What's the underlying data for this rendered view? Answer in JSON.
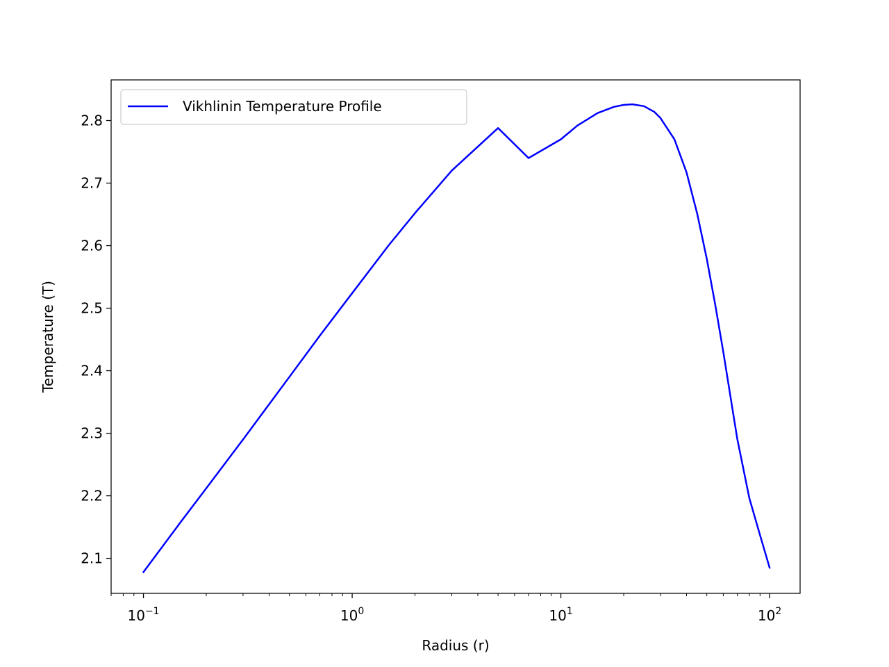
{
  "chart_data": {
    "type": "line",
    "xscale": "log",
    "xlim": [
      0.07,
      140
    ],
    "ylim": [
      2.044,
      2.865
    ],
    "xlabel": "Radius (r)",
    "ylabel": "Temperature (T)",
    "x_major_ticks": [
      0.1,
      1,
      10,
      100
    ],
    "x_tick_labels": [
      {
        "base": "10",
        "exp": "−1"
      },
      {
        "base": "10",
        "exp": "0"
      },
      {
        "base": "10",
        "exp": "1"
      },
      {
        "base": "10",
        "exp": "2"
      }
    ],
    "y_ticks": [
      2.1,
      2.2,
      2.3,
      2.4,
      2.5,
      2.6,
      2.7,
      2.8
    ],
    "y_tick_labels": [
      "2.1",
      "2.2",
      "2.3",
      "2.4",
      "2.5",
      "2.6",
      "2.7",
      "2.8"
    ],
    "grid": false,
    "legend": {
      "position": "top-left",
      "entries": [
        "Vikhlinin Temperature Profile"
      ]
    },
    "series": [
      {
        "name": "Vikhlinin Temperature Profile",
        "color": "#0000ff",
        "x": [
          0.1,
          0.15,
          0.2,
          0.3,
          0.5,
          0.7,
          1,
          1.5,
          2,
          3,
          5,
          7,
          10,
          12,
          15,
          18,
          20,
          22,
          25,
          28,
          30,
          35,
          40,
          45,
          50,
          55,
          60,
          70,
          80,
          90,
          100
        ],
        "y": [
          2.078,
          2.157,
          2.212,
          2.29,
          2.39,
          2.456,
          2.524,
          2.601,
          2.652,
          2.72,
          2.788,
          2.74,
          2.77,
          2.792,
          2.812,
          2.822,
          2.825,
          2.826,
          2.823,
          2.814,
          2.804,
          2.77,
          2.717,
          2.651,
          2.579,
          2.504,
          2.43,
          2.291,
          2.196,
          2.137,
          2.085
        ]
      }
    ]
  }
}
